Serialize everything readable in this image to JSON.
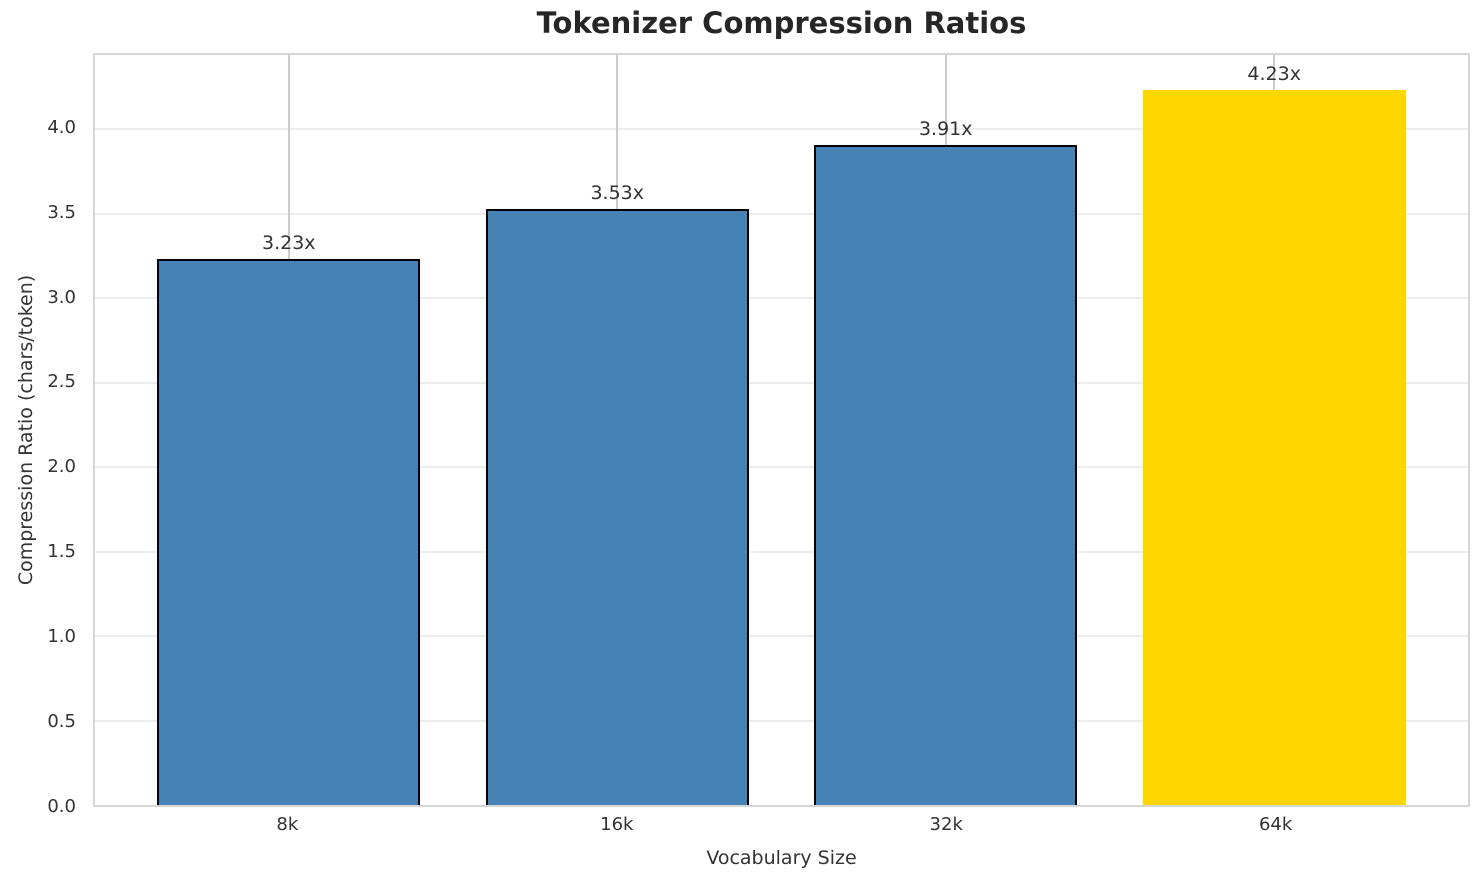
{
  "chart_data": {
    "type": "bar",
    "title": "Tokenizer Compression Ratios",
    "xlabel": "Vocabulary Size",
    "ylabel": "Compression Ratio (chars/token)",
    "categories": [
      "8k",
      "16k",
      "32k",
      "64k"
    ],
    "values": [
      3.23,
      3.53,
      3.91,
      4.23
    ],
    "bar_labels": [
      "3.23x",
      "3.53x",
      "3.91x",
      "4.23x"
    ],
    "bar_colors": [
      "#4682B4",
      "#4682B4",
      "#4682B4",
      "#FFD700"
    ],
    "bar_edge_colors": [
      "#000000",
      "#000000",
      "#000000",
      "none"
    ],
    "ylim": [
      0,
      4.44
    ],
    "yticks": [
      0.0,
      0.5,
      1.0,
      1.5,
      2.0,
      2.5,
      3.0,
      3.5,
      4.0
    ],
    "ytick_labels": [
      "0.0",
      "0.5",
      "1.0",
      "1.5",
      "2.0",
      "2.5",
      "3.0",
      "3.5",
      "4.0"
    ],
    "grid": "both",
    "legend": "none",
    "colors": {
      "bar_blue": "#4682B4",
      "bar_gold": "#FFD700",
      "h_gridline": "#ededed",
      "v_gridline": "#cccccc",
      "spine": "#d6d6d6",
      "title_text": "#262626",
      "tick_text": "#333333"
    }
  }
}
